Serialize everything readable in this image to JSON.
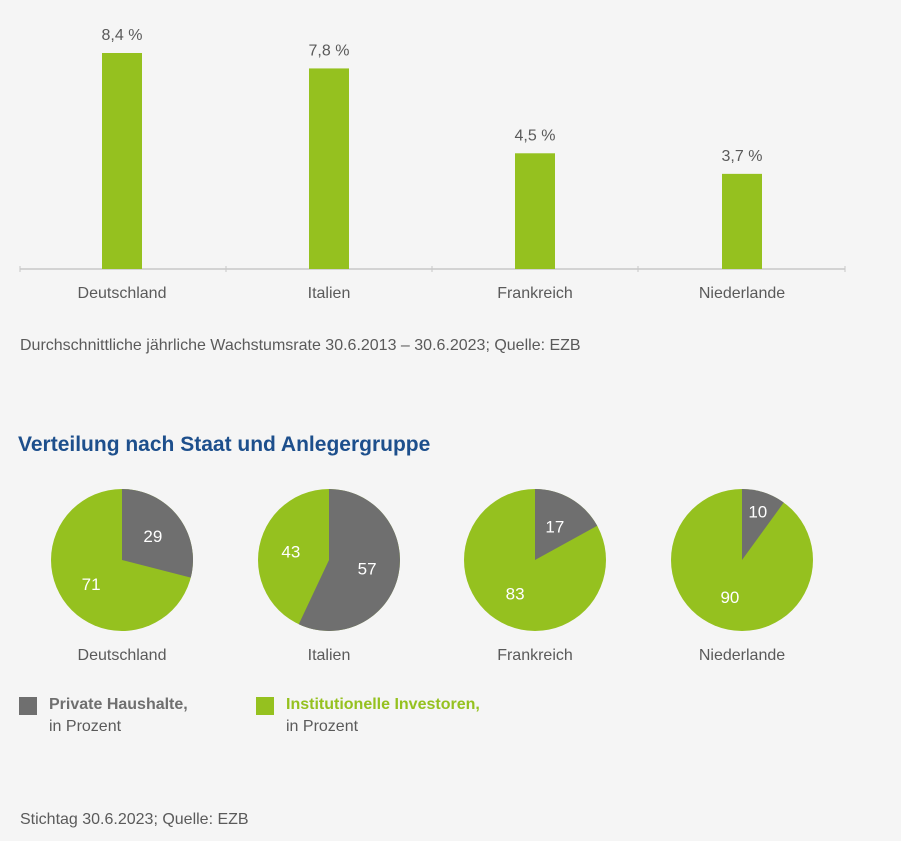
{
  "colors": {
    "green": "#95c11f",
    "gray": "#6f6f6f",
    "axis": "#c8c8c8",
    "title": "#1d4f8c",
    "text": "#5a5a5a"
  },
  "chart_data": [
    {
      "type": "bar",
      "categories": [
        "Deutschland",
        "Italien",
        "Frankreich",
        "Niederlande"
      ],
      "values": [
        8.4,
        7.8,
        4.5,
        3.7
      ],
      "value_labels": [
        "8,4 %",
        "7,8 %",
        "4,5 %",
        "3,7 %"
      ],
      "ylim": [
        0,
        8.4
      ],
      "unit": "%",
      "source": "Durchschnittliche jährliche Wachstumsrate 30.6.2013 – 30.6.2023; Quelle: EZB"
    },
    {
      "type": "pie",
      "title": "Verteilung nach Staat und Anlegergruppe",
      "categories": [
        "Deutschland",
        "Italien",
        "Frankreich",
        "Niederlande"
      ],
      "series": [
        {
          "name": "Private Haushalte,",
          "unit_label": "in Prozent",
          "values": [
            29,
            57,
            17,
            10
          ]
        },
        {
          "name": "Institutionelle Investoren,",
          "unit_label": "in Prozent",
          "values": [
            71,
            43,
            83,
            90
          ]
        }
      ],
      "source": "Stichtag 30.6.2023; Quelle: EZB"
    }
  ]
}
